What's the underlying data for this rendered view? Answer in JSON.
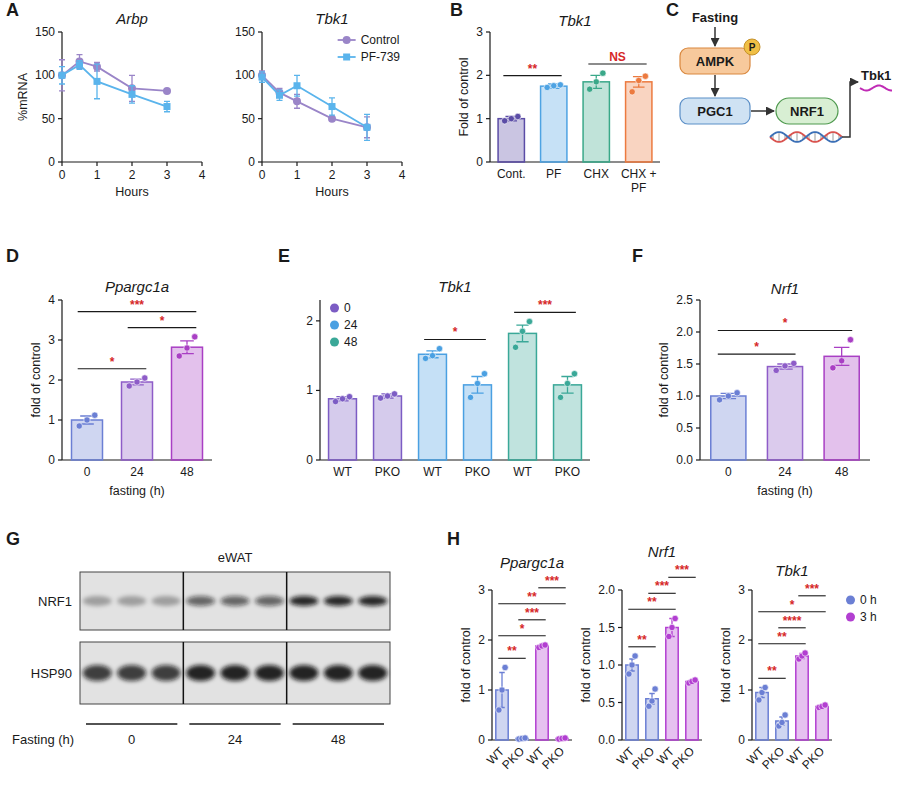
{
  "panel_labels": [
    "A",
    "B",
    "C",
    "D",
    "E",
    "F",
    "G",
    "H"
  ],
  "chart_data": [
    {
      "type": "line",
      "title": "Arbp",
      "x_label": "Hours",
      "y_label": "%mRNA",
      "x": [
        0,
        0.5,
        1,
        2,
        3
      ],
      "xlim": [
        0,
        4
      ],
      "xticks": [
        0,
        1,
        2,
        3,
        4
      ],
      "ylim": [
        0,
        150
      ],
      "yticks": [
        0,
        50,
        100,
        150
      ],
      "series": [
        {
          "color": "#9a85c8",
          "marker": "circle",
          "values": [
            100,
            116,
            110,
            85,
            82
          ],
          "errors": [
            18,
            8,
            5,
            15,
            2
          ]
        },
        {
          "color": "#5ab4ec",
          "marker": "square",
          "values": [
            100,
            112,
            93,
            78,
            64
          ],
          "errors": [
            10,
            5,
            20,
            10,
            6
          ]
        }
      ]
    },
    {
      "type": "line",
      "title": "Tbk1",
      "x_label": "Hours",
      "x": [
        0,
        0.5,
        1,
        2,
        3
      ],
      "xlim": [
        0,
        4
      ],
      "xticks": [
        0,
        1,
        2,
        3,
        4
      ],
      "ylim": [
        0,
        150
      ],
      "yticks": [
        0,
        50,
        100,
        150
      ],
      "legend": "upper right",
      "series": [
        {
          "name": "Control",
          "color": "#9a85c8",
          "marker": "circle",
          "values": [
            100,
            80,
            70,
            50,
            40
          ],
          "errors": [
            5,
            5,
            8,
            2,
            12
          ]
        },
        {
          "name": "PF-739",
          "color": "#5ab4ec",
          "marker": "square",
          "values": [
            98,
            77,
            88,
            64,
            40
          ],
          "errors": [
            6,
            6,
            12,
            10,
            15
          ]
        }
      ]
    },
    {
      "type": "bar",
      "title": "Tbk1",
      "y_label": "Fold of control",
      "categories": [
        "Cont.",
        "PF",
        "CHX",
        "CHX + PF"
      ],
      "ylim": [
        0,
        3
      ],
      "yticks": [
        0,
        1,
        2,
        3
      ],
      "colors": [
        "#5b4ca6",
        "#4ea3e3",
        "#3aa889",
        "#ec7a3f"
      ],
      "values": [
        1.0,
        1.75,
        1.85,
        1.85
      ],
      "errors": [
        0.05,
        0.05,
        0.15,
        0.12
      ],
      "points": [
        [
          0.95,
          1.0,
          1.05
        ],
        [
          1.72,
          1.76,
          1.78
        ],
        [
          1.68,
          1.85,
          2.05
        ],
        [
          1.62,
          1.88,
          1.98
        ]
      ],
      "significance": [
        {
          "label": "**",
          "between": [
            0,
            1
          ]
        },
        {
          "label": "NS",
          "between": [
            2,
            3
          ]
        }
      ]
    },
    {
      "type": "bar",
      "title": "Ppargc1a",
      "y_label": "fold of control",
      "x_label": "fasting (h)",
      "categories": [
        "0",
        "24",
        "48"
      ],
      "ylim": [
        0,
        4
      ],
      "yticks": [
        0,
        1,
        2,
        3,
        4
      ],
      "colors": [
        "#6b7fd4",
        "#8e5cc8",
        "#a93fc4"
      ],
      "values": [
        1.0,
        1.95,
        2.82
      ],
      "errors": [
        0.1,
        0.07,
        0.16
      ],
      "points": [
        [
          0.85,
          1.0,
          1.12
        ],
        [
          1.85,
          1.95,
          2.05
        ],
        [
          2.6,
          2.8,
          3.08
        ]
      ],
      "significance": [
        {
          "label": "*",
          "between": [
            0,
            1
          ]
        },
        {
          "label": "*",
          "between": [
            1,
            2
          ]
        },
        {
          "label": "***",
          "between": [
            0,
            2
          ]
        }
      ]
    },
    {
      "type": "bar",
      "title": "Tbk1",
      "categories": [
        "WT",
        "PKO",
        "WT",
        "PKO",
        "WT",
        "PKO"
      ],
      "ylim": [
        0,
        2.3
      ],
      "yticks": [
        0,
        1,
        2
      ],
      "legend": "upper left",
      "series": [
        {
          "name": "0",
          "color": "#7c5cc4",
          "values": [
            0.88,
            0.92,
            null,
            null,
            null,
            null
          ],
          "errors": [
            0.03,
            0.03,
            null,
            null,
            null,
            null
          ],
          "points": [
            [
              0.84,
              0.88,
              0.91
            ],
            [
              0.89,
              0.92,
              0.95
            ],
            null,
            null,
            null,
            null
          ]
        },
        {
          "name": "24",
          "color": "#4aa0e2",
          "values": [
            null,
            null,
            1.52,
            1.08,
            null,
            null
          ],
          "errors": [
            null,
            null,
            0.05,
            0.12,
            null,
            null
          ],
          "points": [
            null,
            null,
            [
              1.46,
              1.5,
              1.6
            ],
            [
              0.9,
              1.1,
              1.24
            ],
            null,
            null
          ]
        },
        {
          "name": "48",
          "color": "#3aa898",
          "values": [
            null,
            null,
            null,
            null,
            1.82,
            1.08
          ],
          "errors": [
            null,
            null,
            null,
            null,
            0.12,
            0.12
          ],
          "points": [
            null,
            null,
            null,
            null,
            [
              1.62,
              1.85,
              1.99
            ],
            [
              0.9,
              1.1,
              1.24
            ]
          ]
        }
      ],
      "significance": [
        {
          "label": "*",
          "between": [
            2,
            3
          ]
        },
        {
          "label": "***",
          "between": [
            4,
            5
          ]
        }
      ]
    },
    {
      "type": "bar",
      "title": "Nrf1",
      "y_label": "fold of control",
      "x_label": "fasting (h)",
      "categories": [
        "0",
        "24",
        "48"
      ],
      "ylim": [
        0,
        2.5
      ],
      "yticks": [
        {
          "value": 0,
          "label": "0.0"
        },
        0.5,
        {
          "value": 1,
          "label": "1.0"
        },
        1.5,
        {
          "value": 2,
          "label": "2.0"
        },
        2.5
      ],
      "colors": [
        "#6b7fd4",
        "#8e5cc8",
        "#a93fc4"
      ],
      "values": [
        1.0,
        1.46,
        1.62
      ],
      "errors": [
        0.04,
        0.04,
        0.14
      ],
      "points": [
        [
          0.94,
          1.0,
          1.05
        ],
        [
          1.4,
          1.47,
          1.51
        ],
        [
          1.44,
          1.55,
          1.88
        ]
      ],
      "significance": [
        {
          "label": "*",
          "between": [
            0,
            1
          ]
        },
        {
          "label": "*",
          "between": [
            0,
            2
          ]
        }
      ]
    },
    {
      "type": "bar",
      "title": "Ppargc1a",
      "y_label": "fold of control",
      "categories": [
        "WT",
        "PKO",
        "WT",
        "PKO"
      ],
      "ylim": [
        0,
        3
      ],
      "yticks": [
        0,
        1,
        2,
        3
      ],
      "series": [
        {
          "color": "#6b7fd4",
          "values": [
            1.0,
            0.03,
            null,
            null
          ],
          "errors": [
            0.35,
            0.01,
            null,
            null
          ],
          "points": [
            [
              0.6,
              1.0,
              1.45
            ],
            [
              0.02,
              0.03,
              0.04
            ],
            null,
            null
          ]
        },
        {
          "color": "#b23fd1",
          "values": [
            null,
            null,
            1.88,
            0.03
          ],
          "errors": [
            null,
            null,
            0.03,
            0.01
          ],
          "points": [
            null,
            null,
            [
              1.85,
              1.88,
              1.9
            ],
            [
              0.02,
              0.03,
              0.04
            ]
          ]
        }
      ],
      "significance": [
        {
          "label": "**",
          "between": [
            0,
            1
          ]
        },
        {
          "label": "*",
          "between": [
            0,
            2
          ]
        },
        {
          "label": "***",
          "between": [
            1,
            2
          ]
        },
        {
          "label": "**",
          "between": [
            0,
            3
          ]
        },
        {
          "label": "***",
          "between": [
            2,
            3
          ]
        }
      ]
    },
    {
      "type": "bar",
      "title": "Nrf1",
      "y_label": "fold of control",
      "categories": [
        "WT",
        "PKO",
        "WT",
        "PKO"
      ],
      "ylim": [
        0,
        2
      ],
      "yticks": [
        {
          "value": 0,
          "label": "0.0"
        },
        0.5,
        {
          "value": 1,
          "label": "1.0"
        },
        1.5,
        {
          "value": 2,
          "label": "2.0"
        }
      ],
      "series": [
        {
          "color": "#6b7fd4",
          "values": [
            1.0,
            0.55,
            null,
            null
          ],
          "errors": [
            0.08,
            0.07,
            null,
            null
          ],
          "points": [
            [
              0.88,
              1.0,
              1.12
            ],
            [
              0.45,
              0.52,
              0.68
            ],
            null,
            null
          ]
        },
        {
          "color": "#b23fd1",
          "values": [
            null,
            null,
            1.5,
            0.78
          ],
          "errors": [
            null,
            null,
            0.12,
            0.02
          ],
          "points": [
            null,
            null,
            [
              1.38,
              1.5,
              1.62
            ],
            [
              0.76,
              0.78,
              0.8
            ]
          ]
        }
      ],
      "significance": [
        {
          "label": "**",
          "between": [
            0,
            1
          ]
        },
        {
          "label": "**",
          "between": [
            0,
            2
          ]
        },
        {
          "label": "***",
          "between": [
            1,
            2
          ]
        },
        {
          "label": "***",
          "between": [
            2,
            3
          ]
        }
      ]
    },
    {
      "type": "bar",
      "title": "Tbk1",
      "y_label": "fold of control",
      "categories": [
        "WT",
        "PKO",
        "WT",
        "PKO"
      ],
      "ylim": [
        0,
        3
      ],
      "yticks": [
        0,
        1,
        2,
        3
      ],
      "legend": "right",
      "series": [
        {
          "name": "0 h",
          "color": "#6b7fd4",
          "values": [
            0.95,
            0.38,
            null,
            null
          ],
          "errors": [
            0.1,
            0.08,
            null,
            null
          ],
          "points": [
            [
              0.8,
              0.95,
              1.05
            ],
            [
              0.28,
              0.35,
              0.5
            ],
            null,
            null
          ]
        },
        {
          "name": "3 h",
          "color": "#b23fd1",
          "values": [
            null,
            null,
            1.68,
            0.67
          ],
          "errors": [
            null,
            null,
            0.05,
            0.02
          ],
          "points": [
            null,
            null,
            [
              1.62,
              1.68,
              1.74
            ],
            [
              0.65,
              0.67,
              0.7
            ]
          ]
        }
      ],
      "significance": [
        {
          "label": "**",
          "between": [
            0,
            1
          ]
        },
        {
          "label": "**",
          "between": [
            0,
            2
          ]
        },
        {
          "label": "****",
          "between": [
            1,
            2
          ]
        },
        {
          "label": "*",
          "between": [
            0,
            3
          ]
        },
        {
          "label": "***",
          "between": [
            2,
            3
          ]
        }
      ]
    }
  ],
  "diagram": {
    "trigger": "Fasting",
    "kinase": "AMPK",
    "phospho": "P",
    "coactivator": "PGC1",
    "factor": "NRF1",
    "target": "Tbk1"
  },
  "blot": {
    "tissue": "eWAT",
    "rows": [
      "NRF1",
      "HSP90"
    ],
    "groups": [
      "0",
      "24",
      "48"
    ],
    "x_label": "Fasting (h)"
  }
}
